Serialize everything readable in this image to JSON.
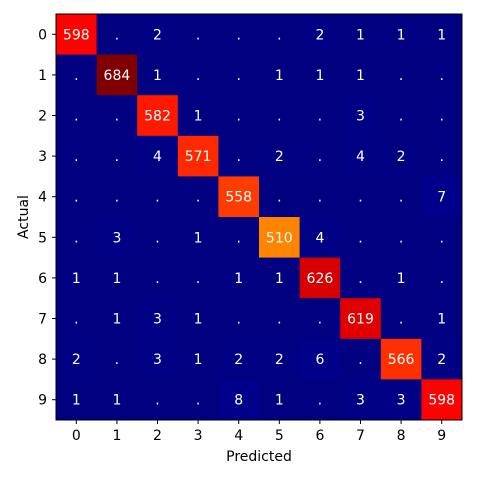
{
  "chart_data": {
    "type": "heatmap",
    "title": "",
    "xlabel": "Predicted",
    "ylabel": "Actual",
    "x_categories": [
      "0",
      "1",
      "2",
      "3",
      "4",
      "5",
      "6",
      "7",
      "8",
      "9"
    ],
    "y_categories": [
      "0",
      "1",
      "2",
      "3",
      "4",
      "5",
      "6",
      "7",
      "8",
      "9"
    ],
    "matrix": [
      [
        598,
        0,
        2,
        0,
        0,
        0,
        2,
        1,
        1,
        1
      ],
      [
        0,
        684,
        1,
        0,
        0,
        1,
        1,
        1,
        0,
        0
      ],
      [
        0,
        0,
        582,
        1,
        0,
        0,
        0,
        3,
        0,
        0
      ],
      [
        0,
        0,
        4,
        571,
        0,
        2,
        0,
        4,
        2,
        0
      ],
      [
        0,
        0,
        0,
        0,
        558,
        0,
        0,
        0,
        0,
        7
      ],
      [
        0,
        3,
        0,
        1,
        0,
        510,
        4,
        0,
        0,
        0
      ],
      [
        1,
        1,
        0,
        0,
        1,
        1,
        626,
        0,
        1,
        0
      ],
      [
        0,
        1,
        3,
        1,
        0,
        0,
        0,
        619,
        0,
        1
      ],
      [
        2,
        0,
        3,
        1,
        2,
        2,
        6,
        0,
        566,
        2
      ],
      [
        1,
        1,
        0,
        0,
        8,
        1,
        0,
        3,
        3,
        598
      ]
    ],
    "zero_display": ".",
    "colormap": "jet",
    "grid": false
  }
}
